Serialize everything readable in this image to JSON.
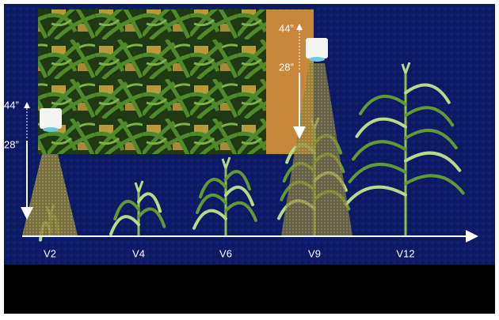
{
  "stages": [
    "V2",
    "V4",
    "V6",
    "V9",
    "V12"
  ],
  "sensors": [
    {
      "upper_label": "44”",
      "lower_label": "28”"
    },
    {
      "upper_label": "44”",
      "lower_label": "28”"
    }
  ]
}
